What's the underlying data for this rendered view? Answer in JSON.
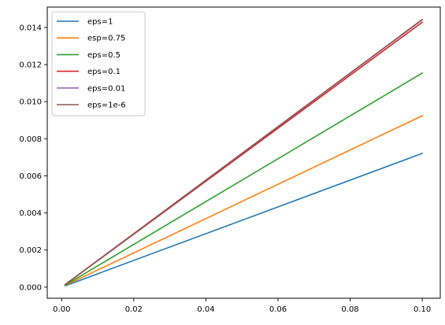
{
  "chart_data": {
    "type": "line",
    "title": "",
    "xlabel": "",
    "ylabel": "",
    "xlim": [
      -0.004,
      0.105
    ],
    "ylim": [
      -0.0006,
      0.0151
    ],
    "xticks": [
      0.0,
      0.02,
      0.04,
      0.06,
      0.08,
      0.1
    ],
    "xtick_labels": [
      "0.00",
      "0.02",
      "0.04",
      "0.06",
      "0.08",
      "0.10"
    ],
    "yticks": [
      0.0,
      0.002,
      0.004,
      0.006,
      0.008,
      0.01,
      0.012,
      0.014
    ],
    "ytick_labels": [
      "0.000",
      "0.002",
      "0.004",
      "0.006",
      "0.008",
      "0.010",
      "0.012",
      "0.014"
    ],
    "grid": false,
    "legend_position": "upper-left",
    "series": [
      {
        "name": "eps=1",
        "color": "#1f77b4",
        "x": [
          0.001,
          0.1
        ],
        "y": [
          7e-05,
          0.00721
        ]
      },
      {
        "name": "esp=0.75",
        "color": "#ff7f0e",
        "x": [
          0.001,
          0.1
        ],
        "y": [
          9e-05,
          0.00924
        ]
      },
      {
        "name": "eps=0.5",
        "color": "#2ca02c",
        "x": [
          0.001,
          0.1
        ],
        "y": [
          0.00011,
          0.01154
        ]
      },
      {
        "name": "eps=0.1",
        "color": "#d62728",
        "x": [
          0.001,
          0.1
        ],
        "y": [
          0.00014,
          0.01428
        ]
      },
      {
        "name": "eps=0.01",
        "color": "#9467bd",
        "x": [
          0.001,
          0.1
        ],
        "y": [
          0.00014,
          0.01441
        ]
      },
      {
        "name": "eps=1e-6",
        "color": "#8c564b",
        "x": [
          0.001,
          0.1
        ],
        "y": [
          0.00014,
          0.01443
        ]
      }
    ]
  }
}
